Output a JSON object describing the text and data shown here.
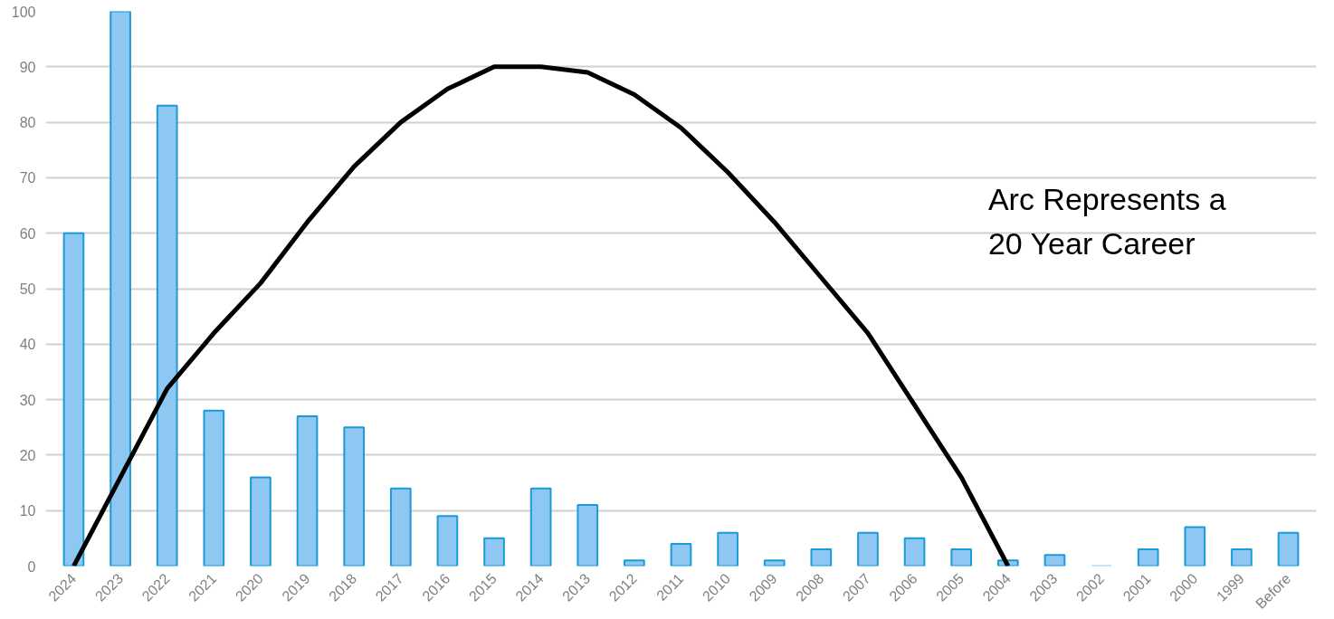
{
  "chart_data": {
    "type": "bar",
    "categories": [
      "2024",
      "2023",
      "2022",
      "2021",
      "2020",
      "2019",
      "2018",
      "2017",
      "2016",
      "2015",
      "2014",
      "2013",
      "2012",
      "2011",
      "2010",
      "2009",
      "2008",
      "2007",
      "2006",
      "2005",
      "2004",
      "2003",
      "2002",
      "2001",
      "2000",
      "1999",
      "Before"
    ],
    "series": [
      {
        "color": "#8ec8f2",
        "values": [
          60,
          100,
          83,
          28,
          16,
          27,
          25,
          14,
          9,
          5,
          14,
          11,
          1,
          4,
          6,
          1,
          3,
          6,
          5,
          3,
          1,
          2,
          0,
          3,
          7,
          3,
          6
        ]
      },
      {
        "type": "line",
        "color": "#000000",
        "values": [
          0,
          16,
          32,
          42,
          51,
          62,
          72,
          80,
          86,
          90,
          90,
          89,
          85,
          79,
          71,
          62,
          52,
          42,
          29,
          16,
          0,
          null,
          null,
          null,
          null,
          null,
          null
        ]
      }
    ],
    "ylim": [
      0,
      100
    ],
    "yticks": [
      0,
      10,
      20,
      30,
      40,
      50,
      60,
      70,
      80,
      90,
      100
    ],
    "grid": "y",
    "marker": "none",
    "line_style": "solid",
    "annotations": [
      "Arc Represents a\n20 Year Career"
    ]
  }
}
